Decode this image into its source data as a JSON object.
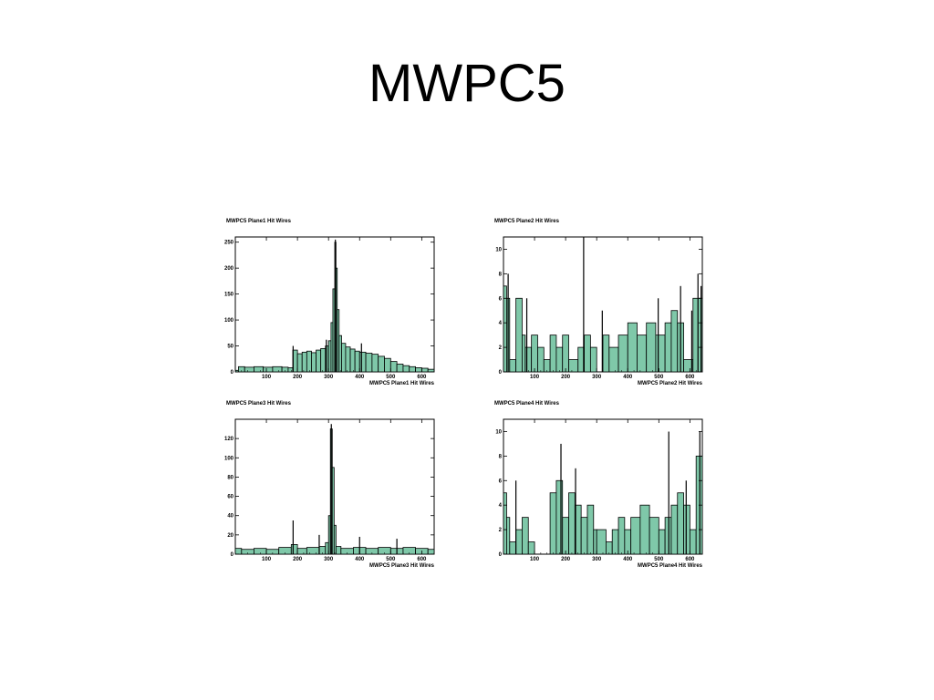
{
  "page": {
    "title": "MWPC5"
  },
  "colors": {
    "fill": "#7fc8a9",
    "line": "#000000",
    "background": "#ffffff"
  },
  "chart_data": [
    {
      "type": "bar",
      "title": "MWPC5 Plane1 Hit Wires",
      "xlabel": "MWPC5 Plane1 Hit Wires",
      "xlim": [
        0,
        640
      ],
      "ylim": [
        0,
        260
      ],
      "xticks": [
        100,
        200,
        300,
        400,
        500,
        600
      ],
      "yticks": [
        0,
        50,
        100,
        150,
        200,
        250
      ],
      "bins": [
        [
          0,
          10,
          3
        ],
        [
          10,
          30,
          10
        ],
        [
          30,
          60,
          9
        ],
        [
          60,
          90,
          10
        ],
        [
          90,
          120,
          9
        ],
        [
          120,
          150,
          10
        ],
        [
          150,
          170,
          9
        ],
        [
          170,
          185,
          8
        ],
        [
          185,
          200,
          42
        ],
        [
          200,
          215,
          35
        ],
        [
          215,
          230,
          38
        ],
        [
          230,
          245,
          40
        ],
        [
          245,
          260,
          37
        ],
        [
          260,
          275,
          42
        ],
        [
          275,
          290,
          45
        ],
        [
          290,
          300,
          50
        ],
        [
          300,
          308,
          60
        ],
        [
          308,
          314,
          95
        ],
        [
          314,
          320,
          160
        ],
        [
          320,
          324,
          250
        ],
        [
          324,
          328,
          200
        ],
        [
          328,
          334,
          120
        ],
        [
          334,
          342,
          70
        ],
        [
          342,
          355,
          55
        ],
        [
          355,
          370,
          48
        ],
        [
          370,
          385,
          44
        ],
        [
          385,
          400,
          40
        ],
        [
          400,
          420,
          38
        ],
        [
          420,
          440,
          36
        ],
        [
          440,
          460,
          34
        ],
        [
          460,
          480,
          30
        ],
        [
          480,
          500,
          26
        ],
        [
          500,
          520,
          20
        ],
        [
          520,
          540,
          15
        ],
        [
          540,
          560,
          12
        ],
        [
          560,
          580,
          10
        ],
        [
          580,
          600,
          8
        ],
        [
          600,
          620,
          7
        ],
        [
          620,
          640,
          5
        ]
      ],
      "spikes": [
        [
          186,
          50
        ],
        [
          293,
          62
        ],
        [
          322,
          255
        ],
        [
          406,
          55
        ]
      ]
    },
    {
      "type": "bar",
      "title": "MWPC5 Plane2 Hit Wires",
      "xlabel": "MWPC5 Plane2 Hit Wires",
      "xlim": [
        0,
        640
      ],
      "ylim": [
        0,
        11
      ],
      "xticks": [
        100,
        200,
        300,
        400,
        500,
        600
      ],
      "yticks": [
        0,
        2,
        4,
        6,
        8,
        10
      ],
      "bins": [
        [
          0,
          10,
          7
        ],
        [
          10,
          20,
          6
        ],
        [
          20,
          40,
          1
        ],
        [
          40,
          60,
          6
        ],
        [
          60,
          70,
          3
        ],
        [
          70,
          90,
          2
        ],
        [
          90,
          110,
          3
        ],
        [
          110,
          130,
          2
        ],
        [
          130,
          150,
          1
        ],
        [
          150,
          170,
          3
        ],
        [
          170,
          190,
          2
        ],
        [
          190,
          210,
          3
        ],
        [
          210,
          240,
          1
        ],
        [
          240,
          260,
          2
        ],
        [
          260,
          280,
          3
        ],
        [
          280,
          300,
          2
        ],
        [
          300,
          320,
          0
        ],
        [
          320,
          340,
          3
        ],
        [
          340,
          370,
          2
        ],
        [
          370,
          400,
          3
        ],
        [
          400,
          430,
          4
        ],
        [
          430,
          460,
          3
        ],
        [
          460,
          490,
          4
        ],
        [
          490,
          520,
          3
        ],
        [
          520,
          540,
          4
        ],
        [
          540,
          560,
          5
        ],
        [
          560,
          580,
          4
        ],
        [
          580,
          610,
          1
        ],
        [
          610,
          640,
          6
        ]
      ],
      "spikes": [
        [
          258,
          11
        ],
        [
          15,
          8
        ],
        [
          75,
          6
        ],
        [
          318,
          5
        ],
        [
          498,
          6
        ],
        [
          570,
          7
        ],
        [
          606,
          5
        ],
        [
          626,
          8
        ],
        [
          636,
          7
        ]
      ]
    },
    {
      "type": "bar",
      "title": "MWPC5 Plane3 Hit Wires",
      "xlabel": "MWPC5 Plane3 Hit Wires",
      "xlim": [
        0,
        640
      ],
      "ylim": [
        0,
        140
      ],
      "xticks": [
        100,
        200,
        300,
        400,
        500,
        600
      ],
      "yticks": [
        0,
        20,
        40,
        60,
        80,
        100,
        120
      ],
      "bins": [
        [
          0,
          20,
          6
        ],
        [
          20,
          60,
          5
        ],
        [
          60,
          100,
          6
        ],
        [
          100,
          140,
          5
        ],
        [
          140,
          180,
          7
        ],
        [
          180,
          200,
          10
        ],
        [
          200,
          230,
          6
        ],
        [
          230,
          270,
          7
        ],
        [
          270,
          290,
          8
        ],
        [
          290,
          300,
          12
        ],
        [
          300,
          306,
          40
        ],
        [
          306,
          312,
          130
        ],
        [
          312,
          318,
          90
        ],
        [
          318,
          324,
          30
        ],
        [
          324,
          340,
          8
        ],
        [
          340,
          380,
          6
        ],
        [
          380,
          420,
          7
        ],
        [
          420,
          460,
          6
        ],
        [
          460,
          500,
          7
        ],
        [
          500,
          540,
          6
        ],
        [
          540,
          580,
          7
        ],
        [
          580,
          620,
          6
        ],
        [
          620,
          640,
          5
        ]
      ],
      "spikes": [
        [
          186,
          35
        ],
        [
          309,
          135
        ],
        [
          270,
          20
        ],
        [
          400,
          18
        ],
        [
          520,
          16
        ]
      ]
    },
    {
      "type": "bar",
      "title": "MWPC5 Plane4 Hit Wires",
      "xlabel": "MWPC5 Plane4 Hit Wires",
      "xlim": [
        0,
        640
      ],
      "ylim": [
        0,
        11
      ],
      "xticks": [
        100,
        200,
        300,
        400,
        500,
        600
      ],
      "yticks": [
        0,
        2,
        4,
        6,
        8,
        10
      ],
      "bins": [
        [
          0,
          10,
          5
        ],
        [
          10,
          20,
          3
        ],
        [
          20,
          40,
          1
        ],
        [
          40,
          60,
          2
        ],
        [
          60,
          80,
          3
        ],
        [
          80,
          100,
          1
        ],
        [
          100,
          150,
          0
        ],
        [
          150,
          170,
          5
        ],
        [
          170,
          190,
          6
        ],
        [
          190,
          210,
          3
        ],
        [
          210,
          230,
          5
        ],
        [
          230,
          250,
          4
        ],
        [
          250,
          270,
          3
        ],
        [
          270,
          290,
          4
        ],
        [
          290,
          300,
          2
        ],
        [
          300,
          330,
          2
        ],
        [
          330,
          350,
          1
        ],
        [
          350,
          370,
          2
        ],
        [
          370,
          390,
          3
        ],
        [
          390,
          410,
          2
        ],
        [
          410,
          440,
          3
        ],
        [
          440,
          470,
          4
        ],
        [
          470,
          500,
          3
        ],
        [
          500,
          520,
          2
        ],
        [
          520,
          540,
          3
        ],
        [
          540,
          560,
          4
        ],
        [
          560,
          580,
          5
        ],
        [
          580,
          600,
          4
        ],
        [
          600,
          620,
          2
        ],
        [
          620,
          640,
          8
        ]
      ],
      "spikes": [
        [
          185,
          9
        ],
        [
          232,
          7
        ],
        [
          40,
          6
        ],
        [
          532,
          10
        ],
        [
          632,
          10
        ],
        [
          588,
          6
        ]
      ]
    }
  ]
}
